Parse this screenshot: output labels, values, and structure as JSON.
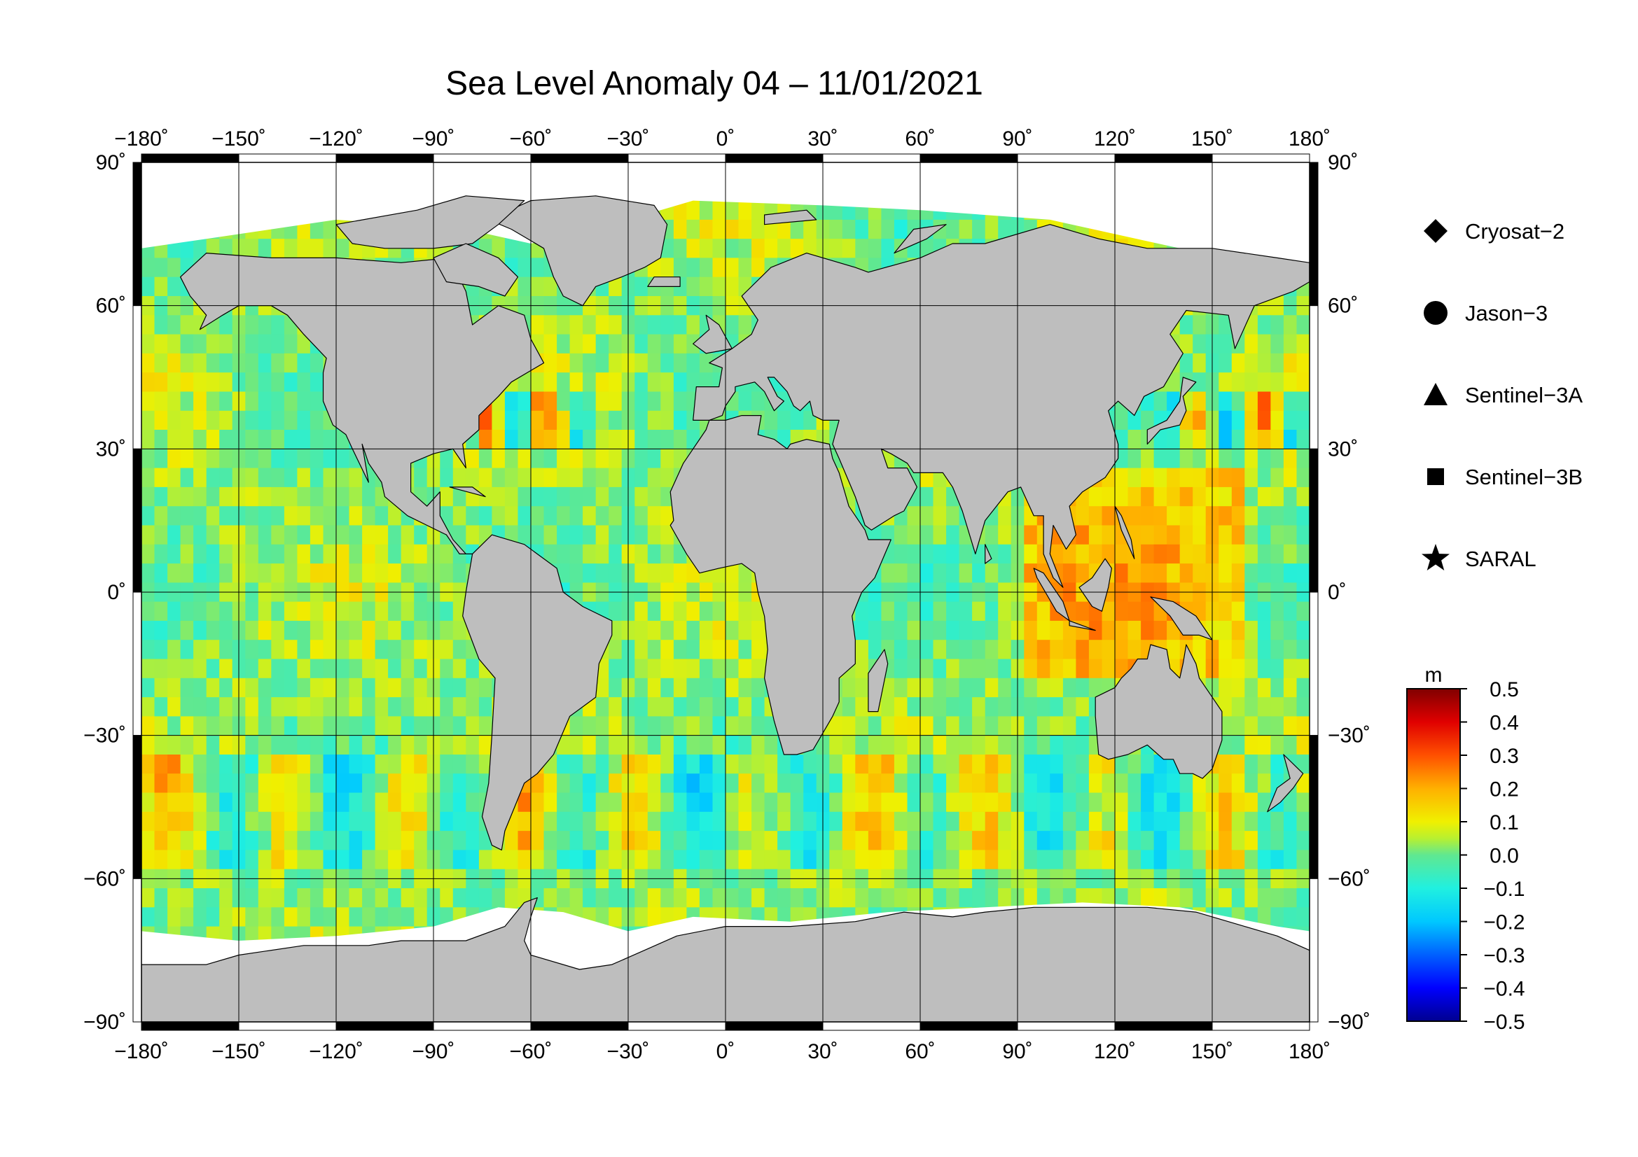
{
  "title": "Sea Level Anomaly 04 – 11/01/2021",
  "map": {
    "projection": "equirectangular",
    "lon_range": [
      -180,
      180
    ],
    "lat_range": [
      -90,
      90
    ],
    "grid": true,
    "land_color": "#bebebe",
    "ice_color": "#ffffff",
    "coast_color": "#000000"
  },
  "axes": {
    "lon_ticks": [
      {
        "value": -180,
        "label": "−180˚"
      },
      {
        "value": -150,
        "label": "−150˚"
      },
      {
        "value": -120,
        "label": "−120˚"
      },
      {
        "value": -90,
        "label": "−90˚"
      },
      {
        "value": -60,
        "label": "−60˚"
      },
      {
        "value": -30,
        "label": "−30˚"
      },
      {
        "value": 0,
        "label": "0˚"
      },
      {
        "value": 30,
        "label": "30˚"
      },
      {
        "value": 60,
        "label": "60˚"
      },
      {
        "value": 90,
        "label": "90˚"
      },
      {
        "value": 120,
        "label": "120˚"
      },
      {
        "value": 150,
        "label": "150˚"
      },
      {
        "value": 180,
        "label": "180˚"
      }
    ],
    "lat_ticks": [
      {
        "value": 90,
        "label": "90˚"
      },
      {
        "value": 60,
        "label": "60˚"
      },
      {
        "value": 30,
        "label": "30˚"
      },
      {
        "value": 0,
        "label": "0˚"
      },
      {
        "value": -30,
        "label": "−30˚"
      },
      {
        "value": -60,
        "label": "−60˚"
      },
      {
        "value": -90,
        "label": "−90˚"
      }
    ]
  },
  "legend": {
    "items": [
      {
        "symbol": "diamond",
        "label": "Cryosat−2"
      },
      {
        "symbol": "circle",
        "label": "Jason−3"
      },
      {
        "symbol": "triangle",
        "label": "Sentinel−3A"
      },
      {
        "symbol": "square",
        "label": "Sentinel−3B"
      },
      {
        "symbol": "star",
        "label": "SARAL"
      }
    ]
  },
  "colorbar": {
    "unit": "m",
    "range": [
      -0.5,
      0.5
    ],
    "ticks": [
      {
        "value": 0.5,
        "label": "0.5"
      },
      {
        "value": 0.4,
        "label": "0.4"
      },
      {
        "value": 0.3,
        "label": "0.3"
      },
      {
        "value": 0.2,
        "label": "0.2"
      },
      {
        "value": 0.1,
        "label": "0.1"
      },
      {
        "value": 0.0,
        "label": "0.0"
      },
      {
        "value": -0.1,
        "label": "−0.1"
      },
      {
        "value": -0.2,
        "label": "−0.2"
      },
      {
        "value": -0.3,
        "label": "−0.3"
      },
      {
        "value": -0.4,
        "label": "−0.4"
      },
      {
        "value": -0.5,
        "label": "−0.5"
      }
    ],
    "stops": [
      {
        "value": -0.5,
        "color": "#00008f"
      },
      {
        "value": -0.4,
        "color": "#0000ff"
      },
      {
        "value": -0.3,
        "color": "#0060ff"
      },
      {
        "value": -0.2,
        "color": "#00c8ff"
      },
      {
        "value": -0.1,
        "color": "#20f0e0"
      },
      {
        "value": 0.0,
        "color": "#60e890"
      },
      {
        "value": 0.05,
        "color": "#b8f030"
      },
      {
        "value": 0.1,
        "color": "#f0f000"
      },
      {
        "value": 0.2,
        "color": "#ffb000"
      },
      {
        "value": 0.3,
        "color": "#ff5000"
      },
      {
        "value": 0.4,
        "color": "#e00000"
      },
      {
        "value": 0.5,
        "color": "#800000"
      }
    ]
  }
}
